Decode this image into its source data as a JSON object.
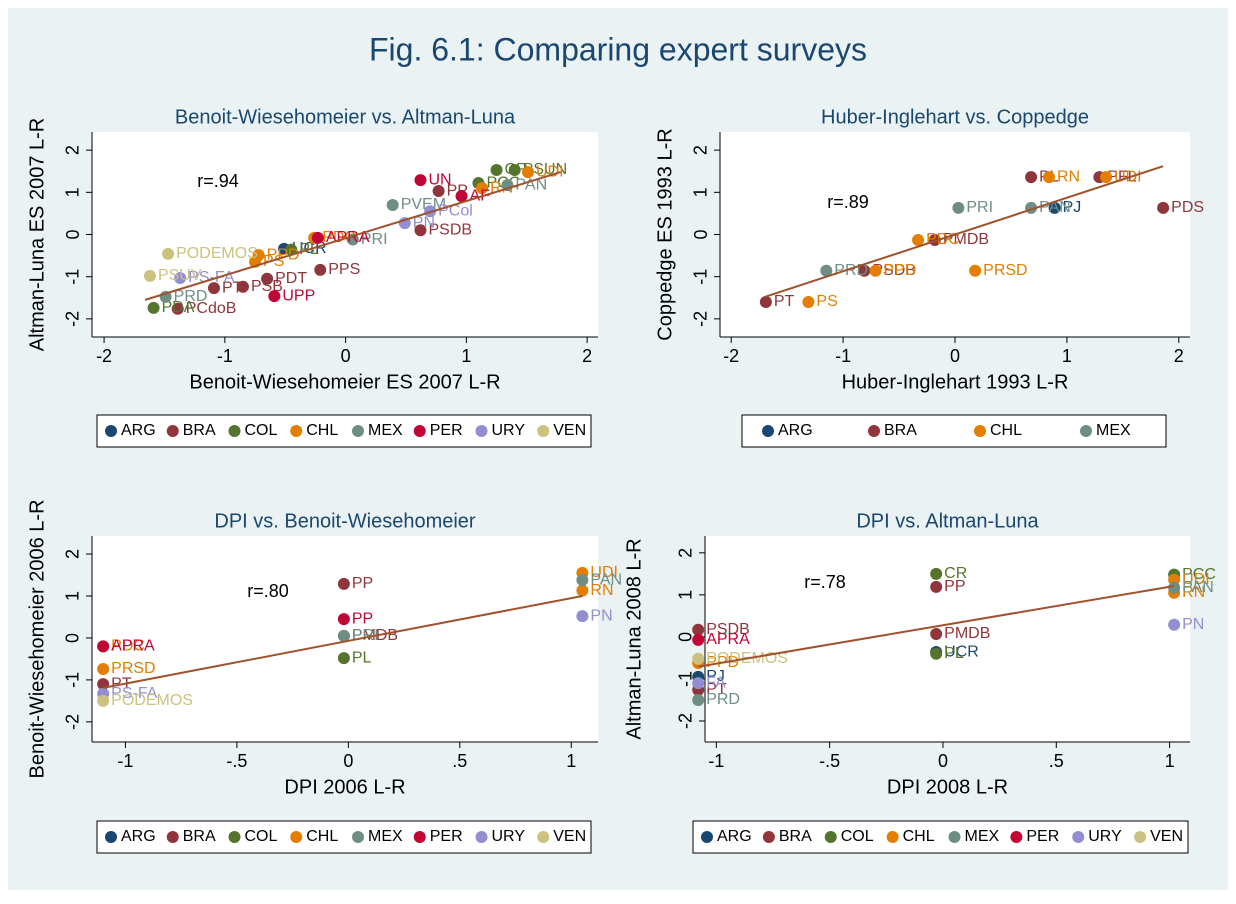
{
  "title": "Fig. 6.1: Comparing expert surveys",
  "chart_data": [
    {
      "type": "scatter",
      "title": "Benoit-Wiesehomeier vs. Altman-Luna",
      "x_label": "Benoit-Wiesehomeier ES 2007 L-R",
      "y_label": "Altman-Luna ES 2007 L-R",
      "annotation": "r=.94",
      "xlim": [
        -2.1,
        2.09
      ],
      "ylim": [
        -2.43,
        2.43
      ],
      "xticks": [
        -2,
        -1,
        0,
        1,
        2
      ],
      "yticks": [
        -2,
        -1,
        0,
        1,
        2
      ],
      "fit": {
        "color": "#a0522d",
        "x": [
          -1.66,
          1.78
        ],
        "y": [
          -1.55,
          1.48
        ]
      },
      "series": [
        {
          "name": "ARG",
          "color": "#1a476f",
          "x": [
            -0.51
          ],
          "values": [
            -0.34
          ],
          "labels": [
            "UCR"
          ]
        },
        {
          "name": "BRA",
          "color": "#90353b",
          "x": [
            0.77,
            0.62,
            -0.21,
            -0.65,
            -1.09,
            -0.85,
            -1.39
          ],
          "values": [
            1.03,
            0.1,
            -0.84,
            -1.05,
            -1.27,
            -1.24,
            -1.76
          ],
          "labels": [
            "PP",
            "PSDB",
            "PPS",
            "PDT",
            "PT",
            "PSB",
            "PCdoB"
          ]
        },
        {
          "name": "COL",
          "color": "#55752f",
          "x": [
            1.25,
            1.4,
            1.1,
            -1.59,
            -0.45
          ],
          "values": [
            1.53,
            1.53,
            1.22,
            -1.74,
            -0.36
          ],
          "labels": [
            "CR",
            "PSUN",
            "PCC",
            "PDA",
            "PL"
          ]
        },
        {
          "name": "CHL",
          "color": "#e37e00",
          "x": [
            1.51,
            1.13,
            -0.72,
            -0.75,
            -0.26
          ],
          "values": [
            1.48,
            1.1,
            -0.49,
            -0.65,
            -0.08
          ],
          "labels": [
            "UDI",
            "RN",
            "PPD",
            "PS",
            "PDC"
          ]
        },
        {
          "name": "MEX",
          "color": "#6e8e84",
          "x": [
            1.34,
            0.39,
            0.06,
            -1.49
          ],
          "values": [
            1.17,
            0.7,
            -0.12,
            -1.48
          ],
          "labels": [
            "PAN",
            "PVEM",
            "PRI",
            "PRD"
          ]
        },
        {
          "name": "PER",
          "color": "#c10534",
          "x": [
            0.62,
            0.96,
            -0.23,
            -0.59
          ],
          "values": [
            1.29,
            0.91,
            -0.08,
            -1.46
          ],
          "labels": [
            "UN",
            "AF",
            "APRA",
            "UPP"
          ]
        },
        {
          "name": "URY",
          "color": "#938dd2",
          "x": [
            0.49,
            0.7,
            -1.37
          ],
          "values": [
            0.27,
            0.55,
            -1.03
          ],
          "labels": [
            "PN",
            "PCol",
            "PS-FA"
          ]
        },
        {
          "name": "VEN",
          "color": "#cac27e",
          "x": [
            -1.47,
            -1.62
          ],
          "values": [
            -0.46,
            -0.98
          ],
          "labels": [
            "PODEMOS",
            "PSUV"
          ]
        }
      ]
    },
    {
      "type": "scatter",
      "title": "Huber-Inglehart vs. Coppedge",
      "x_label": "Huber-Inglehart 1993 L-R",
      "y_label": "Coppedge ES 1993 L-R",
      "annotation": "r=.89",
      "xlim": [
        -2.1,
        2.1
      ],
      "ylim": [
        -2.43,
        2.43
      ],
      "xticks": [
        -2,
        -1,
        0,
        1,
        2
      ],
      "yticks": [
        -2,
        -1,
        0,
        1,
        2
      ],
      "fit": {
        "color": "#a0522d",
        "x": [
          -1.7,
          1.86
        ],
        "y": [
          -1.48,
          1.62
        ]
      },
      "series": [
        {
          "name": "ARG",
          "color": "#1a476f",
          "x": [
            0.89
          ],
          "values": [
            0.63
          ],
          "labels": [
            "PJ"
          ]
        },
        {
          "name": "BRA",
          "color": "#90353b",
          "x": [
            0.68,
            1.29,
            1.86,
            -0.18,
            -0.81,
            -1.69
          ],
          "values": [
            1.36,
            1.36,
            0.63,
            -0.13,
            -0.86,
            -1.6
          ],
          "labels": [
            "PL",
            "PFL",
            "PDS",
            "PMDB",
            "PSDB",
            "PT"
          ]
        },
        {
          "name": "CHL",
          "color": "#e37e00",
          "x": [
            0.84,
            1.35,
            -0.33,
            -0.71,
            0.18,
            -1.31
          ],
          "values": [
            1.36,
            1.36,
            -0.13,
            -0.86,
            -0.86,
            -1.6
          ],
          "labels": [
            "RN",
            "UDI",
            "PDC",
            "PPD",
            "PRSD",
            "PS"
          ]
        },
        {
          "name": "MEX",
          "color": "#6e8e84",
          "x": [
            0.03,
            0.68,
            -1.15
          ],
          "values": [
            0.63,
            0.63,
            -0.86
          ],
          "labels": [
            "PRI",
            "PAN",
            "PRD"
          ]
        }
      ]
    },
    {
      "type": "scatter",
      "title": "DPI vs. Benoit-Wiesehomeier",
      "x_label": "DPI 2006 L-R",
      "y_label": "Benoit-Wiesehomeier 2006 L-R",
      "annotation": "r=.80",
      "xlim": [
        -1.15,
        1.12
      ],
      "ylim": [
        -2.48,
        2.43
      ],
      "xticks": [
        -1,
        {
          "value": -0.5,
          "label": "-.5"
        },
        0,
        {
          "value": 0.5,
          "label": ".5"
        },
        1
      ],
      "yticks": [
        -2,
        -1,
        0,
        1,
        2
      ],
      "fit": {
        "color": "#a0522d",
        "x": [
          -1.1,
          1.05
        ],
        "y": [
          -1.19,
          1.0
        ]
      },
      "series": [
        {
          "name": "ARG",
          "color": "#1a476f",
          "x": [],
          "values": [],
          "labels": []
        },
        {
          "name": "BRA",
          "color": "#90353b",
          "x": [
            -0.02,
            -0.02,
            -1.1
          ],
          "values": [
            1.29,
            0.05,
            -1.1
          ],
          "labels": [
            "PP",
            "PMDB",
            "PT"
          ]
        },
        {
          "name": "COL",
          "color": "#55752f",
          "x": [
            -0.02
          ],
          "values": [
            -0.48
          ],
          "labels": [
            "PL"
          ]
        },
        {
          "name": "CHL",
          "color": "#e37e00",
          "x": [
            1.05,
            1.05,
            -1.1,
            -1.1
          ],
          "values": [
            1.55,
            1.13,
            -0.74,
            -0.2
          ],
          "labels": [
            "UDI",
            "RN",
            "PRSD",
            "PDC"
          ]
        },
        {
          "name": "MEX",
          "color": "#6e8e84",
          "x": [
            1.05,
            -0.02
          ],
          "values": [
            1.38,
            0.05
          ],
          "labels": [
            "PAN",
            "PRI"
          ]
        },
        {
          "name": "PER",
          "color": "#c10534",
          "x": [
            -0.02,
            -1.1
          ],
          "values": [
            0.45,
            -0.2
          ],
          "labels": [
            "PP",
            "APRA"
          ]
        },
        {
          "name": "URY",
          "color": "#938dd2",
          "x": [
            1.05,
            -1.1
          ],
          "values": [
            0.52,
            -1.33
          ],
          "labels": [
            "PN",
            "PS-FA"
          ]
        },
        {
          "name": "VEN",
          "color": "#cac27e",
          "x": [
            -1.1
          ],
          "values": [
            -1.5
          ],
          "labels": [
            "PODEMOS"
          ]
        }
      ]
    },
    {
      "type": "scatter",
      "title": "DPI vs. Altman-Luna",
      "x_label": "DPI 2008 L-R",
      "y_label": "Altman-Luna 2008 L-R",
      "annotation": "r=.78",
      "xlim": [
        -1.05,
        1.09
      ],
      "ylim": [
        -2.5,
        2.4
      ],
      "xticks": [
        -1,
        {
          "value": -0.5,
          "label": "-.5"
        },
        0,
        {
          "value": 0.5,
          "label": ".5"
        },
        1
      ],
      "yticks": [
        -2,
        -1,
        0,
        1,
        2
      ],
      "fit": {
        "color": "#a0522d",
        "x": [
          -1.08,
          1.02
        ],
        "y": [
          -0.71,
          1.21
        ]
      },
      "series": [
        {
          "name": "ARG",
          "color": "#1a476f",
          "x": [
            -0.03,
            -1.08
          ],
          "values": [
            -0.36,
            -0.95
          ],
          "labels": [
            "UCR",
            "PJ"
          ]
        },
        {
          "name": "BRA",
          "color": "#90353b",
          "x": [
            -0.03,
            -0.03,
            -1.08,
            -1.08
          ],
          "values": [
            1.19,
            0.07,
            0.17,
            -1.26
          ],
          "labels": [
            "PP",
            "PMDB",
            "PSDB",
            "PT"
          ]
        },
        {
          "name": "COL",
          "color": "#55752f",
          "x": [
            -0.03,
            1.02,
            -0.03
          ],
          "values": [
            1.5,
            1.48,
            -0.4
          ],
          "labels": [
            "CR",
            "PCC",
            "PL"
          ]
        },
        {
          "name": "CHL",
          "color": "#e37e00",
          "x": [
            1.02,
            1.02,
            -1.08
          ],
          "values": [
            1.36,
            1.05,
            -0.62
          ],
          "labels": [
            "UDI",
            "RN",
            "PPD"
          ]
        },
        {
          "name": "MEX",
          "color": "#6e8e84",
          "x": [
            1.02,
            -1.08
          ],
          "values": [
            1.17,
            -1.5
          ],
          "labels": [
            "PAN",
            "PRD"
          ]
        },
        {
          "name": "PER",
          "color": "#c10534",
          "x": [
            -1.08
          ],
          "values": [
            -0.07
          ],
          "labels": [
            "APRA"
          ]
        },
        {
          "name": "URY",
          "color": "#938dd2",
          "x": [
            1.02,
            -1.08
          ],
          "values": [
            0.29,
            -1.1
          ],
          "labels": [
            "PN",
            "FA"
          ]
        },
        {
          "name": "VEN",
          "color": "#cac27e",
          "x": [
            -1.08
          ],
          "values": [
            -0.52
          ],
          "labels": [
            "PODEMOS"
          ]
        }
      ]
    }
  ]
}
